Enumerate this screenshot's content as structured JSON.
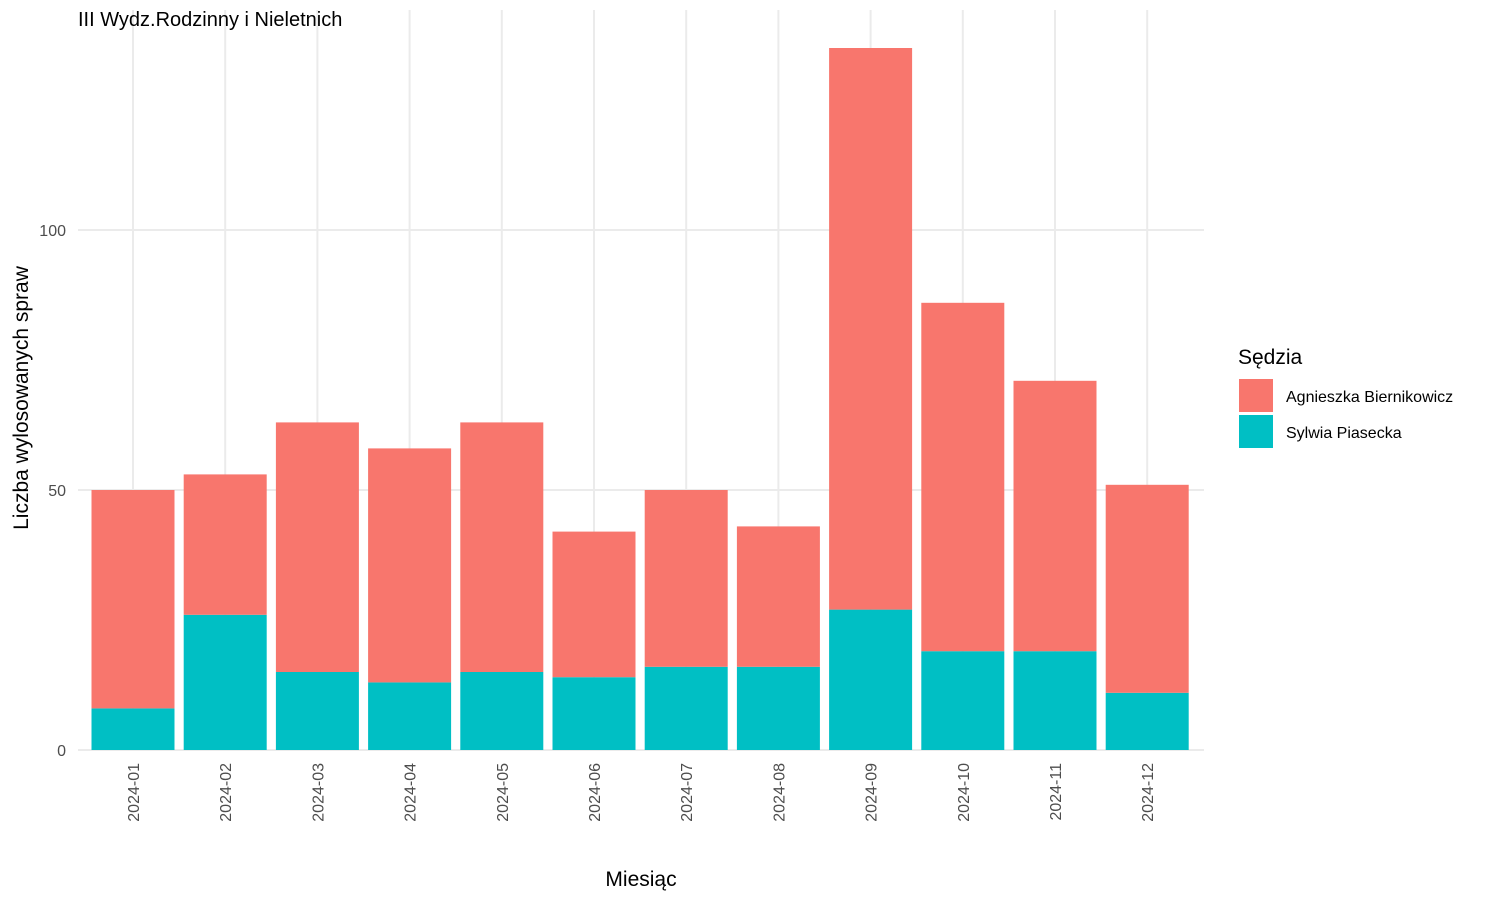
{
  "chart_data": {
    "type": "bar",
    "stacked": true,
    "title": "III Wydz.Rodzinny i Nieletnich",
    "xlabel": "Miesiąc",
    "ylabel": "Liczba wylosowanych spraw",
    "ylim": [
      0,
      135
    ],
    "y_ticks": [
      0,
      50,
      100
    ],
    "grid": true,
    "legend": {
      "title": "Sędzia",
      "position": "right"
    },
    "categories": [
      "2024-01",
      "2024-02",
      "2024-03",
      "2024-04",
      "2024-05",
      "2024-06",
      "2024-07",
      "2024-08",
      "2024-09",
      "2024-10",
      "2024-11",
      "2024-12"
    ],
    "series": [
      {
        "name": "Sylwia Piasecka",
        "color": "#00BFC4",
        "values": [
          8,
          26,
          15,
          13,
          15,
          14,
          16,
          16,
          27,
          19,
          19,
          11
        ]
      },
      {
        "name": "Agnieszka Biernikowicz",
        "color": "#F8766D",
        "values": [
          42,
          27,
          48,
          45,
          48,
          28,
          34,
          27,
          108,
          67,
          52,
          40
        ]
      }
    ],
    "legend_order": [
      "Agnieszka Biernikowicz",
      "Sylwia Piasecka"
    ]
  }
}
